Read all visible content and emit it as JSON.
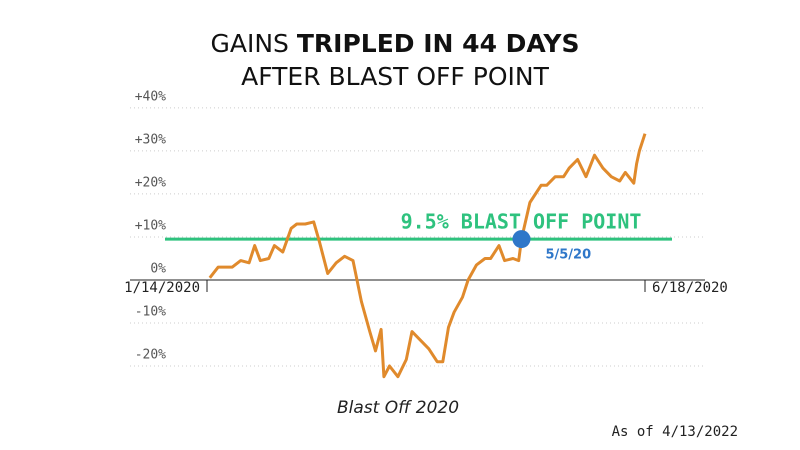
{
  "chart_data": {
    "type": "line",
    "title": "GAINS",
    "title_bold": "TRIPLED IN 44 DAYS",
    "subtitle": "AFTER BLAST OFF POINT",
    "x": [
      "1/15/2020",
      "1/18/2020",
      "1/23/2020",
      "1/26/2020",
      "1/29/2020",
      "1/31/2020",
      "2/2/2020",
      "2/5/2020",
      "2/7/2020",
      "2/10/2020",
      "2/13/2020",
      "2/15/2020",
      "2/18/2020",
      "2/21/2020",
      "2/23/2020",
      "2/26/2020",
      "2/29/2020",
      "3/3/2020",
      "3/6/2020",
      "3/9/2020",
      "3/12/2020",
      "3/14/2020",
      "3/16/2020",
      "3/17/2020",
      "3/19/2020",
      "3/22/2020",
      "3/25/2020",
      "3/27/2020",
      "3/30/2020",
      "4/2/2020",
      "4/5/2020",
      "4/7/2020",
      "4/9/2020",
      "4/11/2020",
      "4/14/2020",
      "4/16/2020",
      "4/19/2020",
      "4/22/2020",
      "4/24/2020",
      "4/27/2020",
      "4/29/2020",
      "5/2/2020",
      "5/4/2020",
      "5/5/2020",
      "5/8/2020",
      "5/12/2020",
      "5/14/2020",
      "5/17/2020",
      "5/20/2020",
      "5/22/2020",
      "5/25/2020",
      "5/28/2020",
      "5/31/2020",
      "6/3/2020",
      "6/6/2020",
      "6/9/2020",
      "6/11/2020",
      "6/14/2020",
      "6/15/2020",
      "6/16/2020",
      "6/18/2020"
    ],
    "series": [
      {
        "color": "#e08a2c",
        "values": [
          0.5,
          3,
          3,
          4.5,
          4,
          8,
          4.5,
          5,
          8,
          6.5,
          12,
          13,
          13,
          13.5,
          9,
          1.5,
          4,
          5.5,
          4.5,
          -5,
          -12,
          -16.5,
          -11.5,
          -22.5,
          -20,
          -22.5,
          -18.5,
          -12,
          -14,
          -16,
          -19,
          -19,
          -11,
          -7.5,
          -4,
          0,
          3.5,
          5,
          5,
          8,
          4.5,
          5,
          4.5,
          9.5,
          18,
          22,
          22,
          24,
          24,
          26,
          28,
          24,
          29,
          26,
          24,
          23,
          25,
          22.5,
          27,
          30,
          34
        ]
      }
    ],
    "xlim": [
      "1/14/2020",
      "6/18/2020"
    ],
    "xticks": [
      "1/14/2020",
      "6/18/2020"
    ],
    "ylim": [
      -25,
      43
    ],
    "yticks": [
      {
        "value": -20,
        "label": "-20%"
      },
      {
        "value": -10,
        "label": "-10%"
      },
      {
        "value": 0,
        "label": "0%"
      },
      {
        "value": 10,
        "label": "+10%"
      },
      {
        "value": 20,
        "label": "+20%"
      },
      {
        "value": 30,
        "label": "+30%"
      },
      {
        "value": 40,
        "label": "+40%"
      }
    ],
    "grid": true,
    "blast_off": {
      "value": 9.5,
      "label": "9.5% BLAST OFF POINT",
      "color": "#2ec27e",
      "date": "5/5/2020",
      "date_label": "5/5/20",
      "marker_color": "#2f77c9"
    },
    "caption": "Blast Off 2020",
    "note": "As of 4/13/2022"
  }
}
